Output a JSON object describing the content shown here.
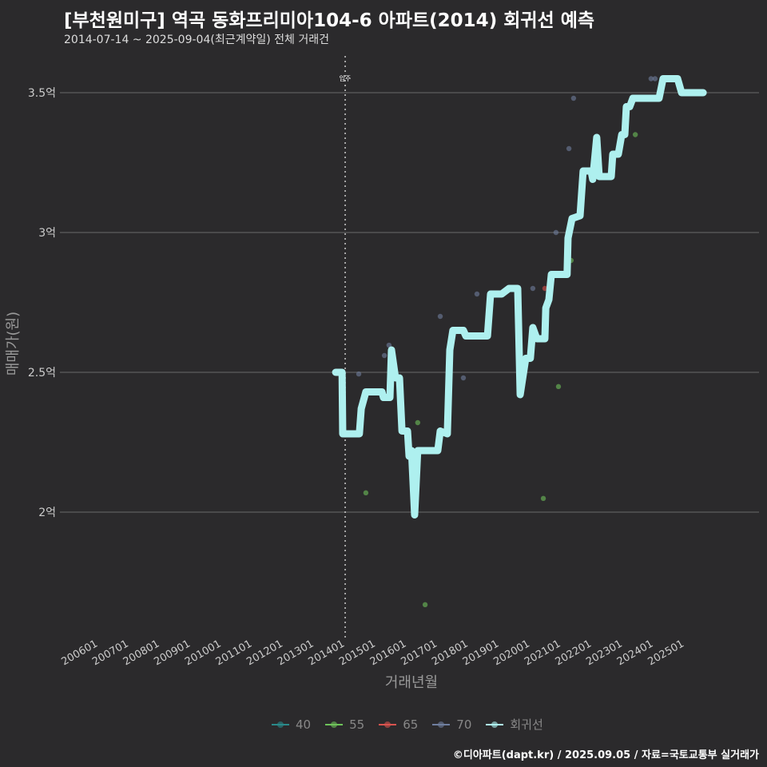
{
  "title": "[부천원미구] 역곡 동화프리미아104-6 아파트(2014) 회귀선 예측",
  "subtitle": "2014-07-14 ~ 2025-09-04(최근계약일) 전체 거래건",
  "footer": "©디아파트(dapt.kr) / 2025.09.05 / 자료=국토교통부 실거래가",
  "colors": {
    "40": "#2a8a8a",
    "55": "#6ec25a",
    "65": "#d9534f",
    "70": "#6f7f9f",
    "회귀선": "#aef0ef"
  },
  "chart_data": {
    "type": "line",
    "xlabel": "거래년월",
    "ylabel": "매매가(원)",
    "ylim": [
      1.57,
      3.63
    ],
    "xlim": [
      2006,
      2025.6
    ],
    "yticks": [
      {
        "v": 2,
        "label": "2억"
      },
      {
        "v": 2.5,
        "label": "2.5억"
      },
      {
        "v": 3,
        "label": "3억"
      },
      {
        "v": 3.5,
        "label": "3.5억"
      }
    ],
    "xticks": [
      "200601",
      "200701",
      "200801",
      "200901",
      "201001",
      "201101",
      "201201",
      "201301",
      "201401",
      "201501",
      "201601",
      "201701",
      "201801",
      "201901",
      "202001",
      "202101",
      "202201",
      "202301",
      "202401",
      "202501"
    ],
    "annotation": {
      "x": 2014.0,
      "label": "입주"
    },
    "legend": [
      "40",
      "55",
      "65",
      "70",
      "회귀선"
    ],
    "regression": [
      [
        2013.69,
        2.5
      ],
      [
        2013.9,
        2.5
      ],
      [
        2013.92,
        2.28
      ],
      [
        2014.46,
        2.28
      ],
      [
        2014.52,
        2.37
      ],
      [
        2014.67,
        2.43
      ],
      [
        2015.19,
        2.43
      ],
      [
        2015.24,
        2.41
      ],
      [
        2015.45,
        2.41
      ],
      [
        2015.5,
        2.58
      ],
      [
        2015.63,
        2.48
      ],
      [
        2015.76,
        2.48
      ],
      [
        2015.84,
        2.29
      ],
      [
        2016.02,
        2.29
      ],
      [
        2016.07,
        2.2
      ],
      [
        2016.15,
        2.22
      ],
      [
        2016.25,
        1.99
      ],
      [
        2016.35,
        2.22
      ],
      [
        2017.0,
        2.22
      ],
      [
        2017.08,
        2.29
      ],
      [
        2017.31,
        2.28
      ],
      [
        2017.39,
        2.58
      ],
      [
        2017.49,
        2.65
      ],
      [
        2017.83,
        2.65
      ],
      [
        2017.91,
        2.63
      ],
      [
        2018.61,
        2.63
      ],
      [
        2018.71,
        2.78
      ],
      [
        2019.07,
        2.78
      ],
      [
        2019.31,
        2.8
      ],
      [
        2019.59,
        2.8
      ],
      [
        2019.67,
        2.42
      ],
      [
        2019.85,
        2.55
      ],
      [
        2020.0,
        2.55
      ],
      [
        2020.08,
        2.66
      ],
      [
        2020.21,
        2.62
      ],
      [
        2020.47,
        2.62
      ],
      [
        2020.5,
        2.73
      ],
      [
        2020.6,
        2.76
      ],
      [
        2020.68,
        2.85
      ],
      [
        2021.19,
        2.85
      ],
      [
        2021.22,
        2.98
      ],
      [
        2021.35,
        3.05
      ],
      [
        2021.61,
        3.06
      ],
      [
        2021.71,
        3.22
      ],
      [
        2021.97,
        3.22
      ],
      [
        2022.02,
        3.19
      ],
      [
        2022.15,
        3.34
      ],
      [
        2022.23,
        3.2
      ],
      [
        2022.62,
        3.2
      ],
      [
        2022.67,
        3.28
      ],
      [
        2022.85,
        3.28
      ],
      [
        2022.96,
        3.35
      ],
      [
        2023.06,
        3.35
      ],
      [
        2023.11,
        3.45
      ],
      [
        2023.22,
        3.45
      ],
      [
        2023.32,
        3.48
      ],
      [
        2024.17,
        3.48
      ],
      [
        2024.3,
        3.55
      ],
      [
        2024.77,
        3.55
      ],
      [
        2024.9,
        3.5
      ],
      [
        2025.6,
        3.5
      ]
    ],
    "points": [
      [
        2014.44,
        2.494,
        "70"
      ],
      [
        2014.67,
        2.069,
        "55"
      ],
      [
        2015.42,
        2.597,
        "70"
      ],
      [
        2015.27,
        2.56,
        "70"
      ],
      [
        2016.35,
        2.32,
        "55"
      ],
      [
        2016.59,
        1.669,
        "55"
      ],
      [
        2017.08,
        2.7,
        "70"
      ],
      [
        2017.83,
        2.48,
        "70"
      ],
      [
        2018.27,
        2.78,
        "70"
      ],
      [
        2020.08,
        2.8,
        "70"
      ],
      [
        2020.42,
        2.049,
        "55"
      ],
      [
        2020.47,
        2.8,
        "65"
      ],
      [
        2020.91,
        2.449,
        "55"
      ],
      [
        2020.83,
        3.0,
        "70"
      ],
      [
        2021.25,
        3.3,
        "70"
      ],
      [
        2021.32,
        2.9,
        "55"
      ],
      [
        2021.4,
        3.48,
        "70"
      ],
      [
        2023.4,
        3.35,
        "55"
      ],
      [
        2023.91,
        3.55,
        "70"
      ],
      [
        2024.04,
        3.55,
        "70"
      ]
    ]
  }
}
